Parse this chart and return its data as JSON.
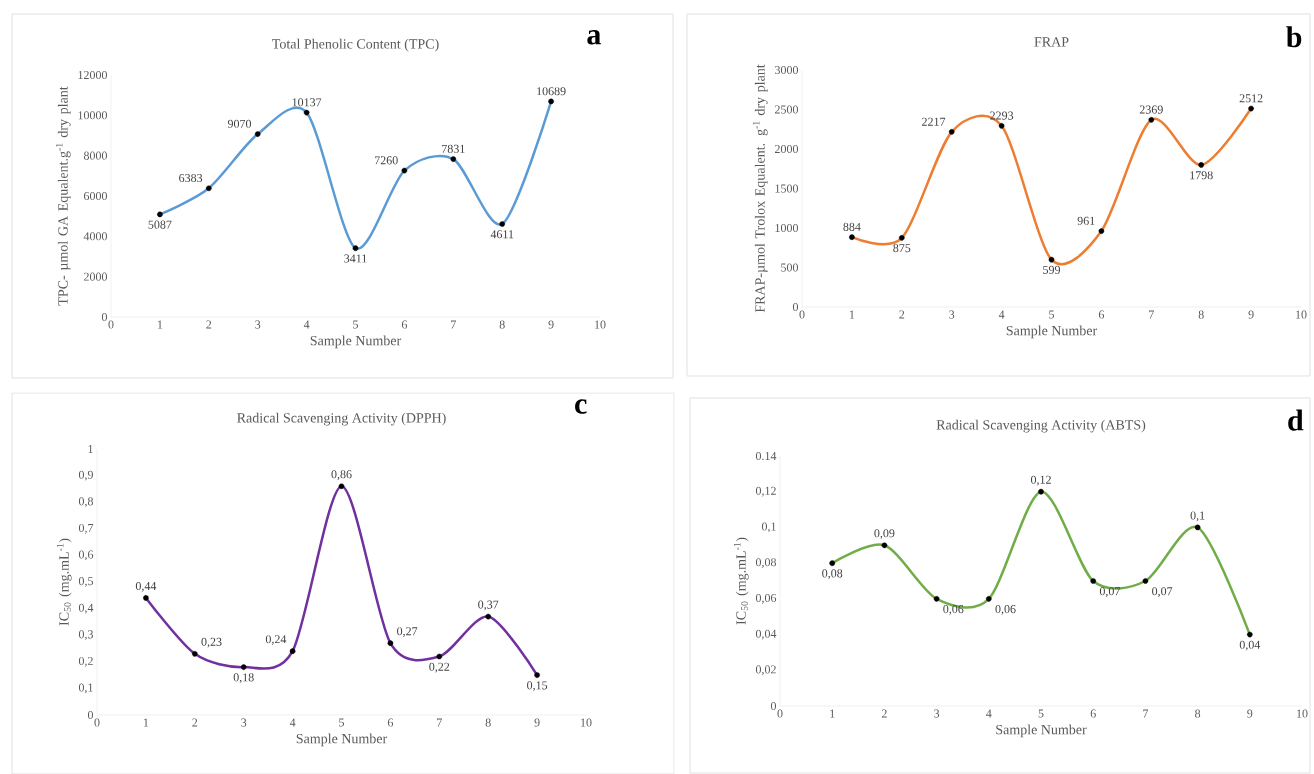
{
  "chart_data": [
    {
      "type": "line",
      "title": "Total Phenolic Content (TPC)",
      "xlabel": "Sample Number",
      "ylabel": "TPC- µmol GA Equalent.g$^{-1}$ dry plant",
      "annotations": [
        "a"
      ],
      "x": [
        1,
        2,
        3,
        4,
        5,
        6,
        7,
        8,
        9
      ],
      "series": [
        {
          "color": "#5b9bd5",
          "values": [
            5087,
            6383,
            9070,
            10137,
            3411,
            7260,
            7831,
            4611,
            10689
          ]
        }
      ],
      "data_labels": true,
      "marker": "circle",
      "xlim": [
        0,
        10
      ],
      "xticks": [
        0,
        1,
        2,
        3,
        4,
        5,
        6,
        7,
        8,
        9,
        10
      ],
      "ylim": [
        0,
        12000
      ],
      "yticks": [
        0,
        2000,
        4000,
        6000,
        8000,
        10000,
        12000
      ]
    },
    {
      "type": "line",
      "title": "FRAP",
      "xlabel": "Sample Number",
      "ylabel": "FRAP-µmol Trolox Equalent. g$^{-1}$ dry plant",
      "annotations": [
        "b"
      ],
      "x": [
        1,
        2,
        3,
        4,
        5,
        6,
        7,
        8,
        9
      ],
      "series": [
        {
          "color": "#ed7d31",
          "values": [
            884,
            875,
            2217,
            2293,
            599,
            961,
            2369,
            1798,
            2512
          ]
        }
      ],
      "data_labels": true,
      "marker": "circle",
      "xlim": [
        0,
        10
      ],
      "xticks": [
        0,
        1,
        2,
        3,
        4,
        5,
        6,
        7,
        8,
        9,
        10
      ],
      "ylim": [
        0,
        3000
      ],
      "yticks": [
        0,
        500,
        1000,
        1500,
        2000,
        2500,
        3000
      ]
    },
    {
      "type": "line",
      "title": "Radical Scavenging Activity (DPPH)",
      "xlabel": "Sample Number",
      "ylabel": "IC$_{50}$ (mg.mL$^{-1}$)",
      "annotations": [
        "c"
      ],
      "x": [
        1,
        2,
        3,
        4,
        5,
        6,
        7,
        8,
        9
      ],
      "series": [
        {
          "color": "#7030a0",
          "values": [
            0.44,
            0.23,
            0.18,
            0.24,
            0.86,
            0.27,
            0.22,
            0.37,
            0.15
          ],
          "value_labels": [
            "0,44",
            "0,23",
            "0,18",
            "0,24",
            "0,86",
            "0,27",
            "0,22",
            "0,37",
            "0,15"
          ]
        }
      ],
      "marker": "circle",
      "xlim": [
        0,
        10
      ],
      "xticks": [
        0,
        1,
        2,
        3,
        4,
        5,
        6,
        7,
        8,
        9,
        10
      ],
      "ylim": [
        0,
        1
      ],
      "yticks": [
        0,
        {
          "value": 0.1,
          "label": "0,1"
        },
        {
          "value": 0.2,
          "label": "0,2"
        },
        {
          "value": 0.3,
          "label": "0,3"
        },
        {
          "value": 0.4,
          "label": "0,4"
        },
        {
          "value": 0.5,
          "label": "0,5"
        },
        {
          "value": 0.6,
          "label": "0,6"
        },
        {
          "value": 0.7,
          "label": "0,7"
        },
        {
          "value": 0.8,
          "label": "0,8"
        },
        {
          "value": 0.9,
          "label": "0,9"
        },
        1
      ]
    },
    {
      "type": "line",
      "title": "Radical Scavenging Activity (ABTS)",
      "xlabel": "Sample Number",
      "ylabel": "IC$_{50}$ (mg.mL$^{-1}$)",
      "annotations": [
        "d"
      ],
      "x": [
        1,
        2,
        3,
        4,
        5,
        6,
        7,
        8,
        9
      ],
      "series": [
        {
          "color": "#70ad47",
          "values": [
            0.08,
            0.09,
            0.06,
            0.06,
            0.12,
            0.07,
            0.07,
            0.1,
            0.04
          ],
          "value_labels": [
            "0,08",
            "0,09",
            "0,06",
            "0,06",
            "0,12",
            "0,07",
            "0,07",
            "0,1",
            "0,04"
          ]
        }
      ],
      "marker": "circle",
      "xlim": [
        0,
        10
      ],
      "xticks": [
        0,
        1,
        2,
        3,
        4,
        5,
        6,
        7,
        8,
        9,
        10
      ],
      "ylim": [
        0,
        0.14
      ],
      "yticks": [
        0,
        {
          "value": 0.02,
          "label": "0,02"
        },
        {
          "value": 0.04,
          "label": "0,04"
        },
        {
          "value": 0.06,
          "label": "0,06"
        },
        {
          "value": 0.08,
          "label": "0,08"
        },
        {
          "value": 0.1,
          "label": "0,1"
        },
        {
          "value": 0.12,
          "label": "0,12"
        },
        0.14
      ]
    }
  ]
}
